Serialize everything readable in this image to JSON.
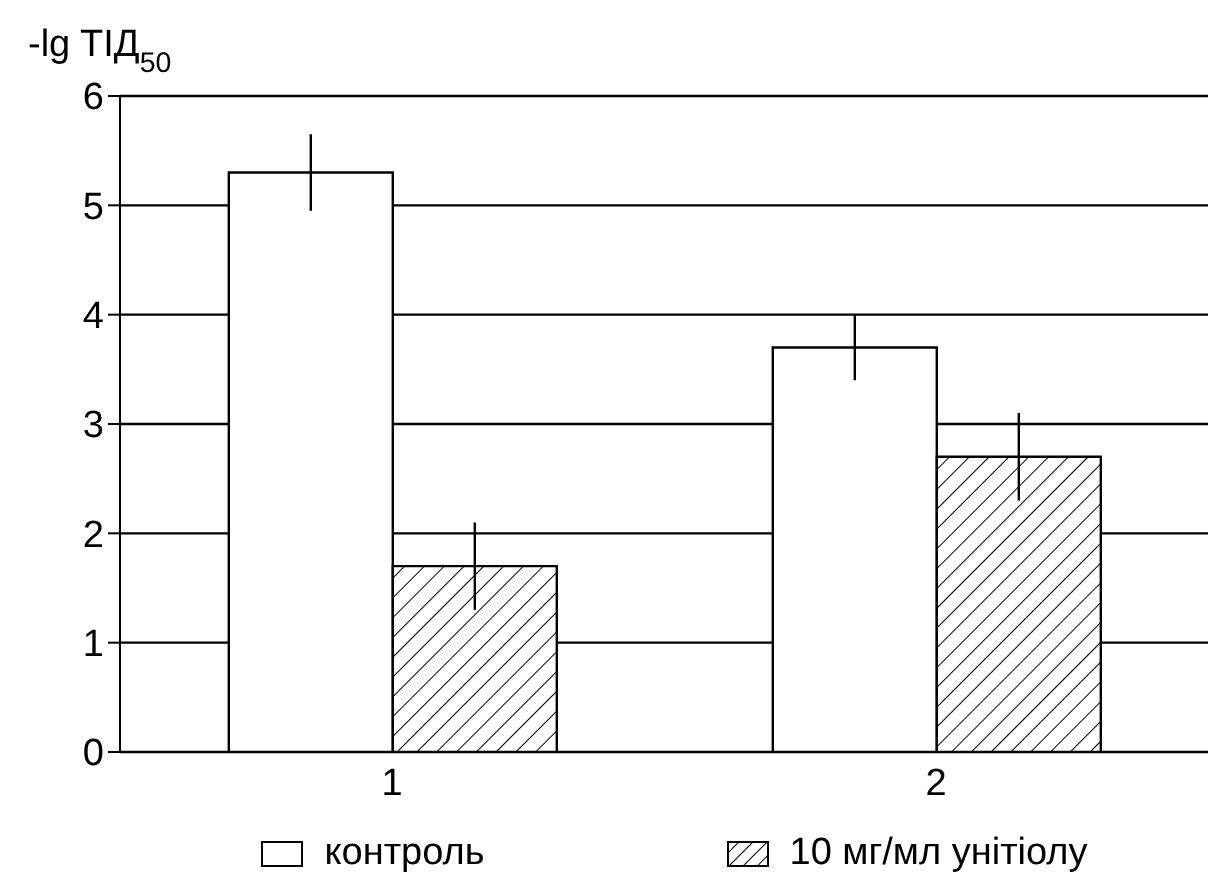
{
  "chart_data": {
    "type": "bar",
    "ylabel": "-lg TIД$_{50}$",
    "categories": [
      "1",
      "2"
    ],
    "series": [
      {
        "name": "контроль",
        "color": "#ffffff",
        "values": [
          5.3,
          3.7
        ],
        "errors": [
          0.35,
          0.3
        ]
      },
      {
        "name": "10 мг/мл унітіолу",
        "color": "#000000",
        "values": [
          1.7,
          2.7
        ],
        "errors": [
          0.4,
          0.4
        ]
      }
    ],
    "ylim": [
      0,
      6
    ],
    "yticks": [
      0,
      1,
      2,
      3,
      4,
      5,
      6
    ],
    "grid": "y",
    "legend": "bottom"
  }
}
